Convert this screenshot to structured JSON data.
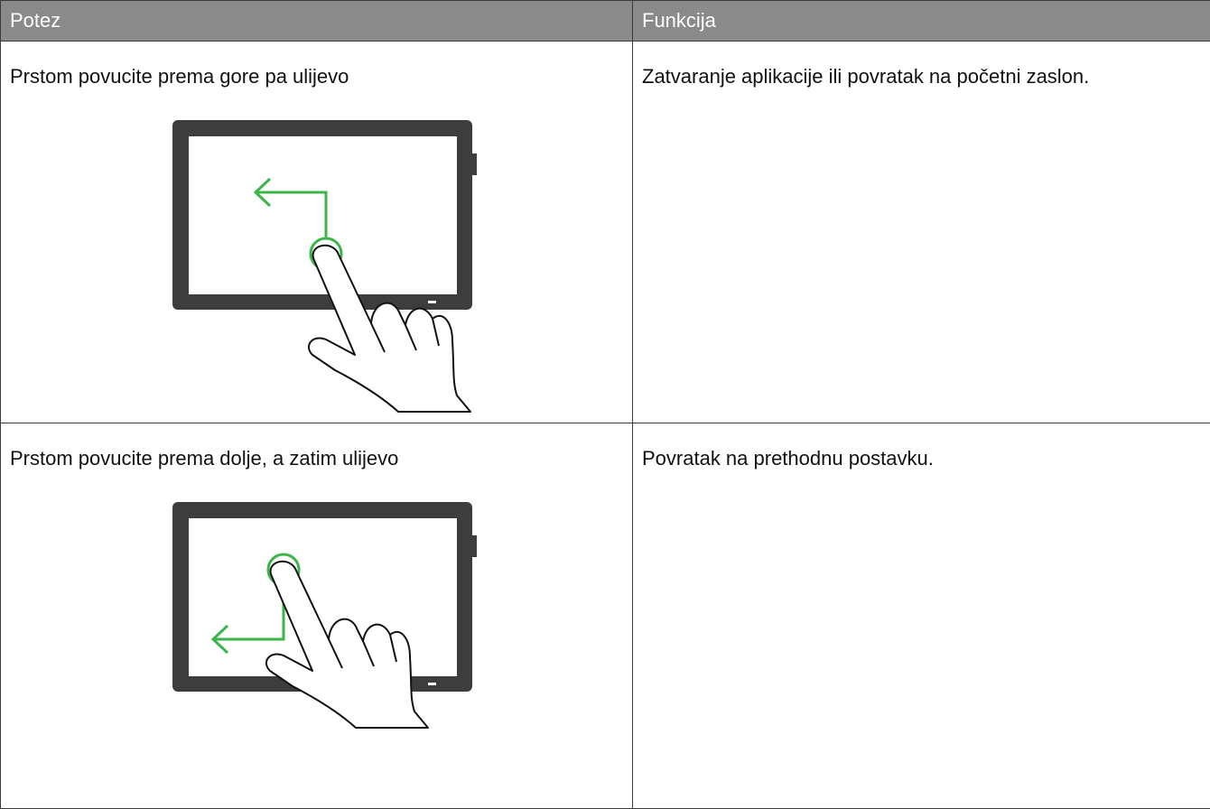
{
  "table": {
    "header": [
      "Potez",
      "Funkcija"
    ],
    "rows": [
      [
        "Prstom povucite prema gore pa ulijevo",
        "Zatvaranje aplikacije ili povratak na početni zaslon."
      ],
      [
        "Prstom povucite prema dolje, a zatim ulijevo",
        "Povratak na prethodnu postavku."
      ]
    ]
  }
}
